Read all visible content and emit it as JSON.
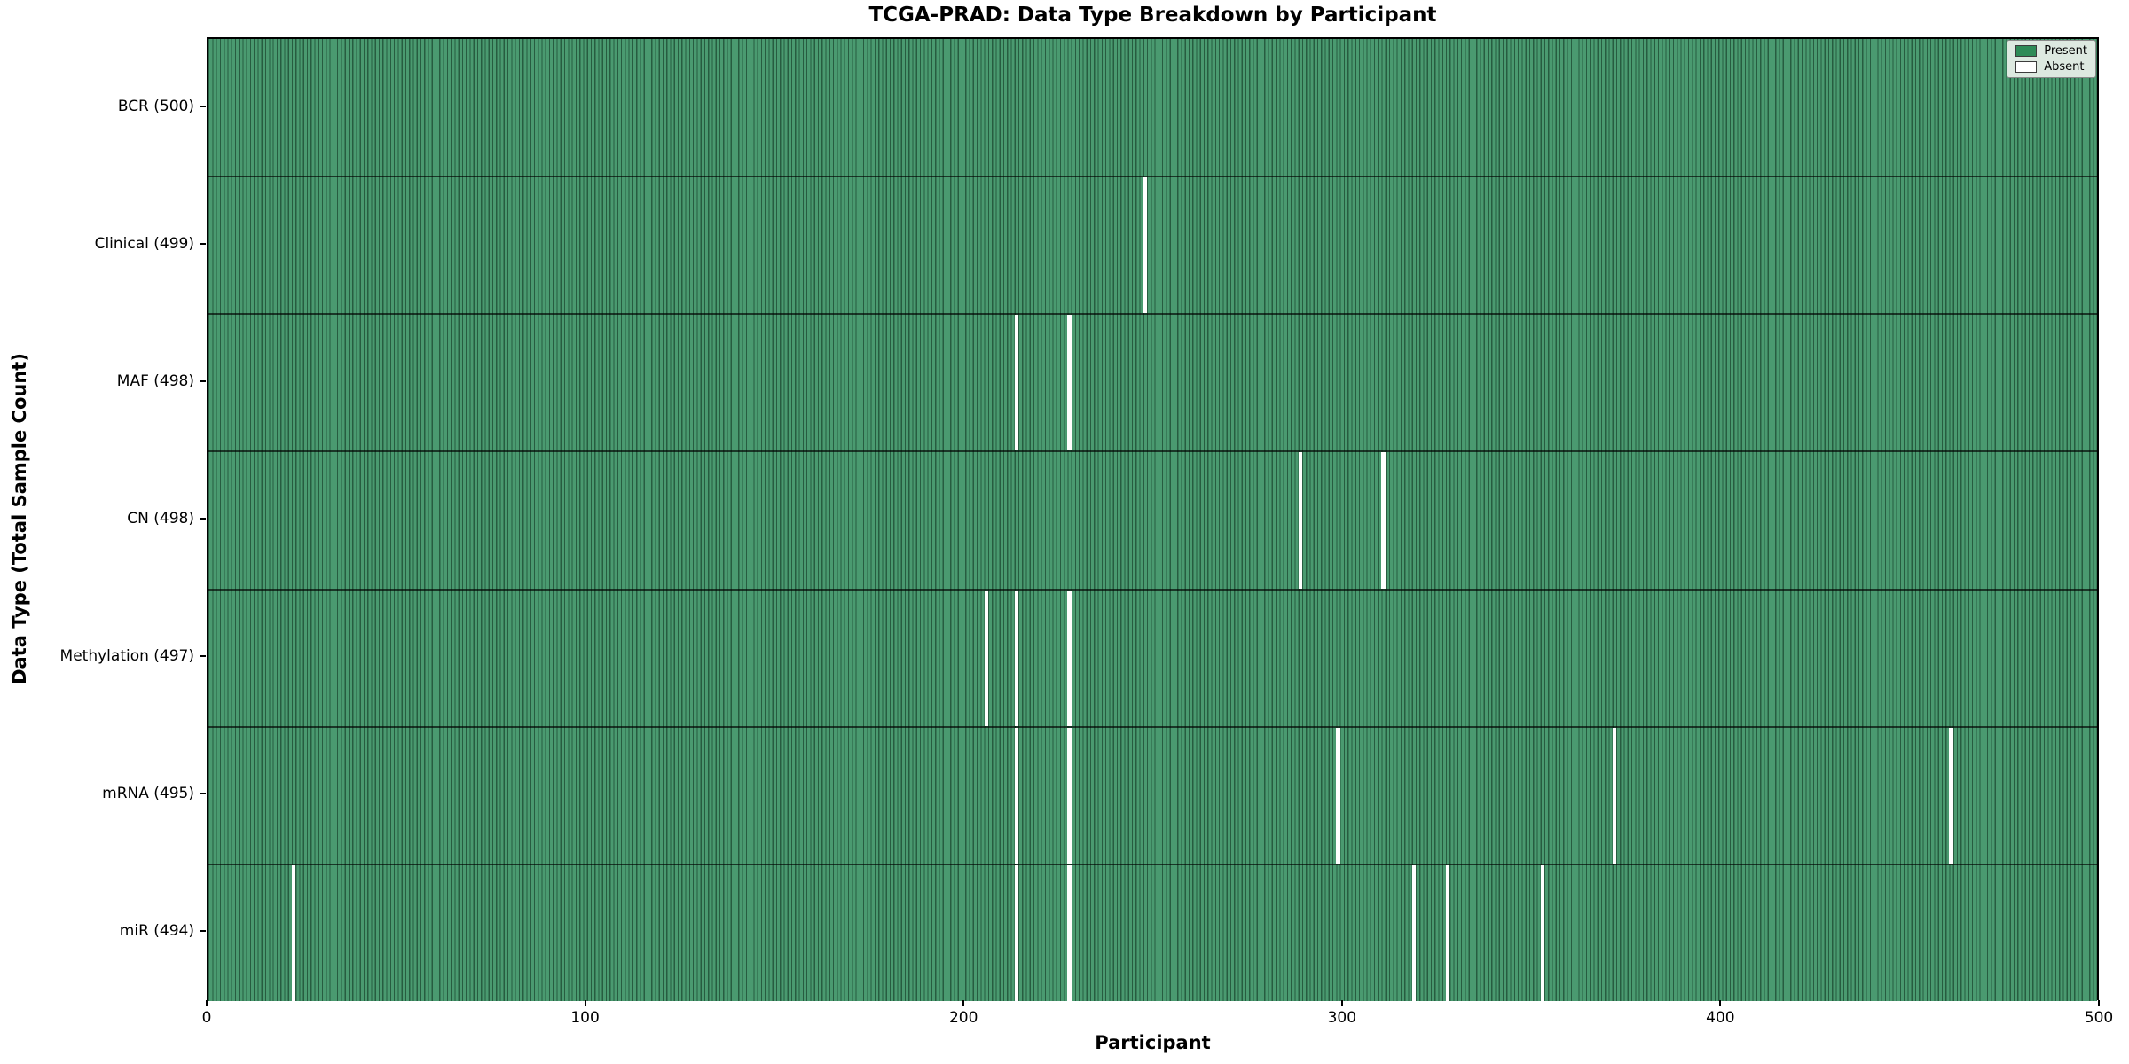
{
  "chart_data": {
    "type": "heatmap",
    "title": "TCGA-PRAD: Data Type Breakdown by Participant",
    "xlabel": "Participant",
    "ylabel": "Data Type (Total Sample Count)",
    "x_range": [
      0,
      500
    ],
    "n_participants": 500,
    "x_ticks": [
      "0",
      "100",
      "200",
      "300",
      "400",
      "500"
    ],
    "x_tick_values": [
      0,
      100,
      200,
      300,
      400,
      500
    ],
    "grid": false,
    "legend_position": "upper right",
    "legend": [
      {
        "label": "Present",
        "color": "#2e8b57"
      },
      {
        "label": "Absent",
        "color": "#ffffff"
      }
    ],
    "colors": {
      "present_fill": "#3f9467",
      "bar_edge": "#235c3f",
      "absent_fill": "#ffffff",
      "row_divider": "#1f3a2b",
      "legend_background": "#dde9e0"
    },
    "rows": [
      {
        "name": "BCR",
        "label": "BCR (500)",
        "total": 500,
        "absent_participants": []
      },
      {
        "name": "Clinical",
        "label": "Clinical (499)",
        "total": 499,
        "absent_participants": [
          247
        ]
      },
      {
        "name": "MAF",
        "label": "MAF (498)",
        "total": 498,
        "absent_participants": [
          213,
          227
        ]
      },
      {
        "name": "CN",
        "label": "CN (498)",
        "total": 498,
        "absent_participants": [
          288,
          310
        ]
      },
      {
        "name": "Methylation",
        "label": "Methylation (497)",
        "total": 497,
        "absent_participants": [
          205,
          213,
          227
        ]
      },
      {
        "name": "mRNA",
        "label": "mRNA (495)",
        "total": 495,
        "absent_participants": [
          213,
          227,
          298,
          371,
          460
        ]
      },
      {
        "name": "miR",
        "label": "miR (494)",
        "total": 494,
        "absent_participants": [
          22,
          213,
          227,
          318,
          327,
          352
        ]
      }
    ]
  }
}
